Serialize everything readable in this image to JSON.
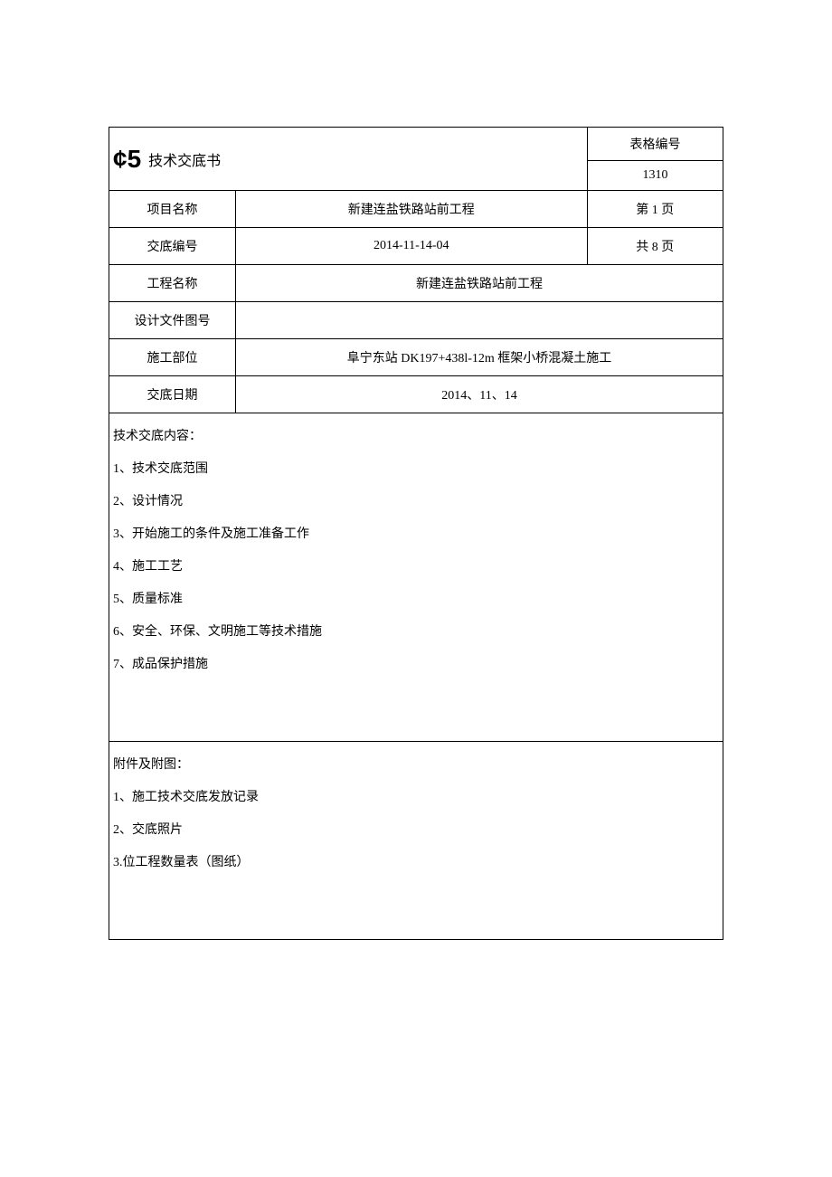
{
  "header": {
    "logo": "¢5",
    "title": "技术交底书",
    "form_label": "表格编号",
    "form_number": "1310"
  },
  "info": {
    "project_name_label": "项目名称",
    "project_name_value": "新建连盐铁路站前工程",
    "page1": "第 1 页",
    "disclosure_num_label": "交底编号",
    "disclosure_num_value": "2014-11-14-04",
    "total_pages": "共 8 页",
    "eng_name_label": "工程名称",
    "eng_name_value": "新建连盐铁路站前工程",
    "design_doc_label": "设计文件图号",
    "design_doc_value": "",
    "const_part_label": "施工部位",
    "const_part_value": "阜宁东站 DK197+438l-12m 框架小桥混凝土施工",
    "date_label": "交底日期",
    "date_value": "2014、11、14"
  },
  "content": {
    "heading": "技术交底内容：",
    "items": [
      "1、技术交底范围",
      "2、设计情况",
      "3、开始施工的条件及施工准备工作",
      "4、施工工艺",
      "5、质量标准",
      "6、安全、环保、文明施工等技术措施",
      "7、成品保护措施"
    ]
  },
  "attachment": {
    "heading": "附件及附图：",
    "items": [
      "1、施工技术交底发放记录",
      "2、交底照片",
      "3.位工程数量表（图纸）"
    ]
  }
}
